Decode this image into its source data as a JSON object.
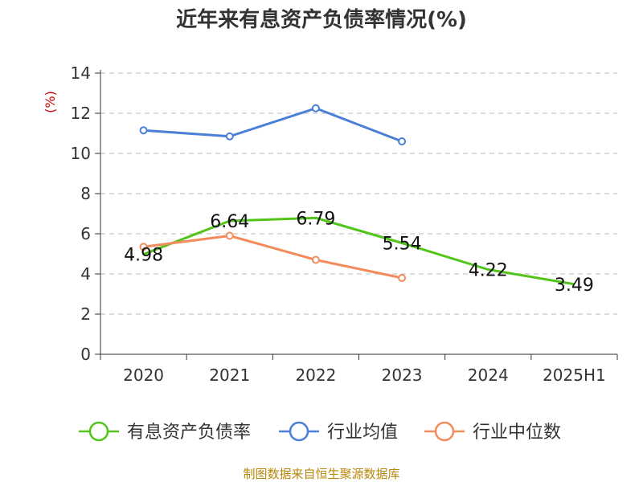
{
  "chart_data": {
    "type": "line",
    "title": "近年来有息资产负债率情况(%)",
    "ylabel": "(%)",
    "xlabel": "",
    "categories": [
      "2020",
      "2021",
      "2022",
      "2023",
      "2024",
      "2025H1"
    ],
    "ylim": [
      0,
      14
    ],
    "yticks": [
      "0",
      "2",
      "4",
      "6",
      "8",
      "10",
      "12",
      "14"
    ],
    "grid": true,
    "legend_position": "bottom",
    "series": [
      {
        "name": "有息资产负债率",
        "color": "#52c41a",
        "values": [
          4.98,
          6.64,
          6.79,
          5.54,
          4.22,
          3.49
        ],
        "labels": [
          "4.98",
          "6.64",
          "6.79",
          "5.54",
          "4.22",
          "3.49"
        ]
      },
      {
        "name": "行业均值",
        "color": "#4a7fd8",
        "values": [
          11.15,
          10.85,
          12.25,
          10.6,
          null,
          null
        ]
      },
      {
        "name": "行业中位数",
        "color": "#f28c5c",
        "values": [
          5.35,
          5.9,
          4.7,
          3.8,
          null,
          null
        ]
      }
    ],
    "source": "制图数据来自恒生聚源数据库"
  }
}
